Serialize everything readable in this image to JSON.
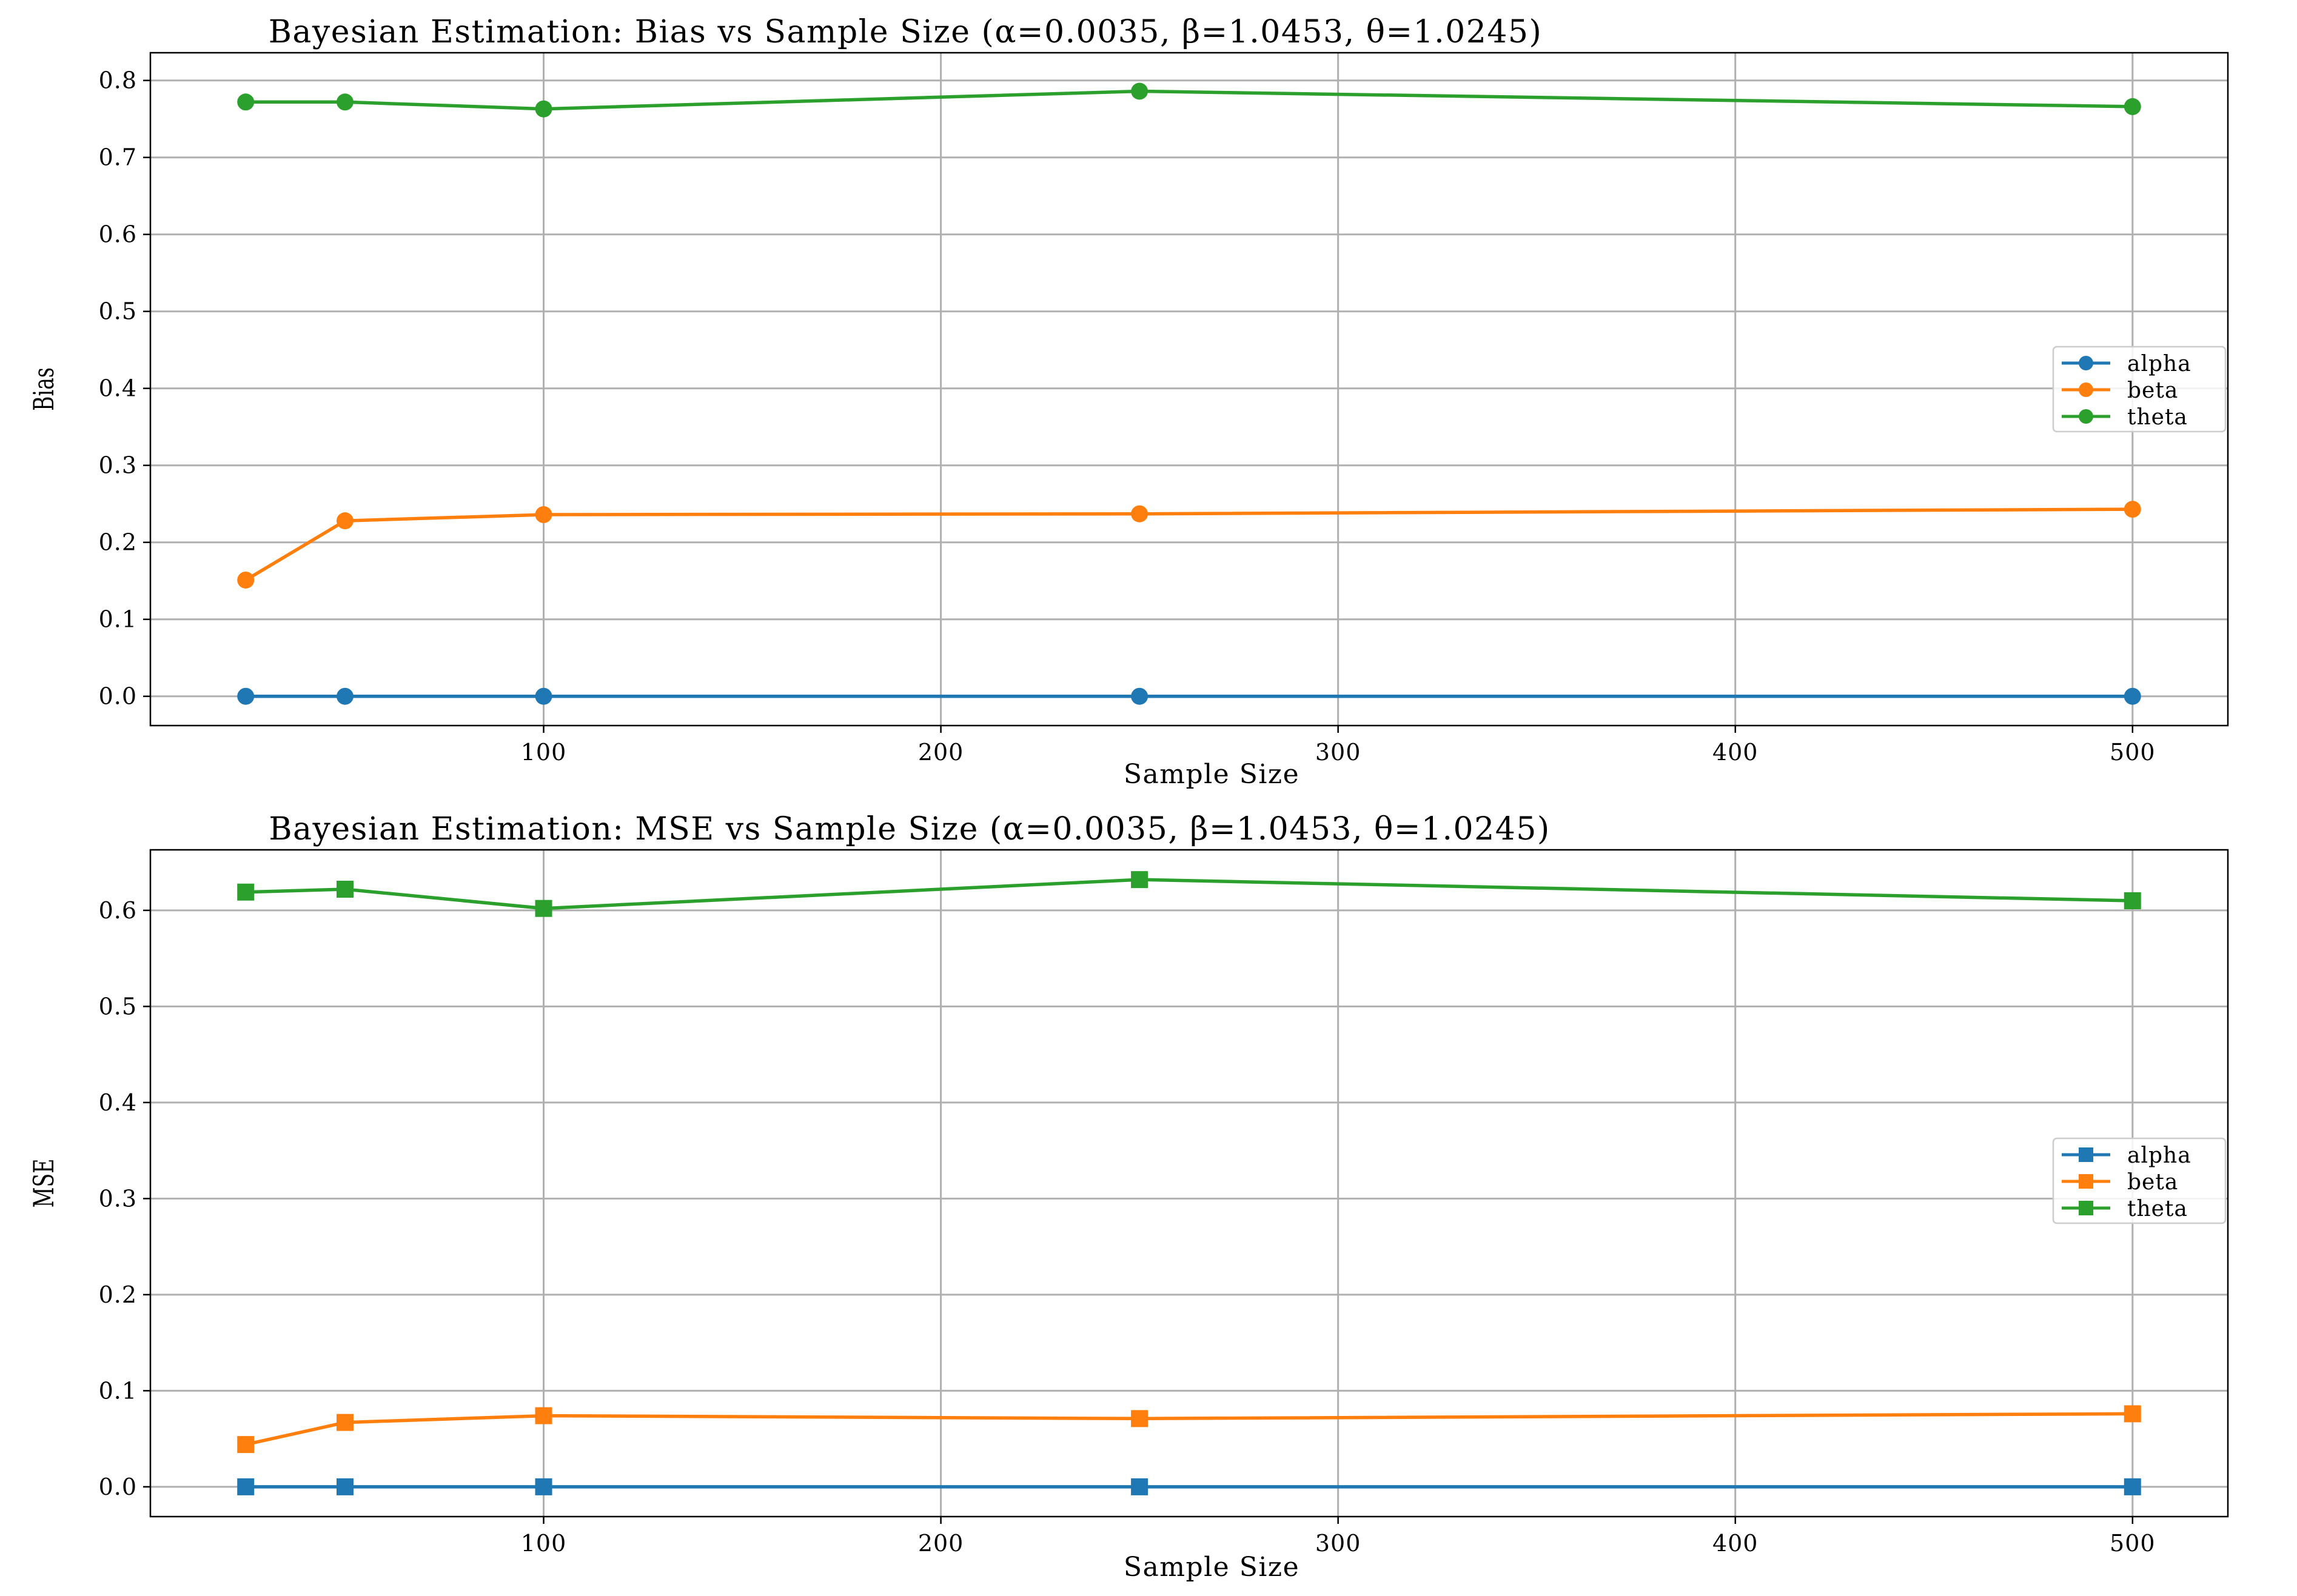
{
  "colors": {
    "alpha": "#1f77b4",
    "beta": "#ff7f0e",
    "theta": "#2ca02c",
    "grid": "#b0b0b0"
  },
  "chart_data": [
    {
      "type": "line",
      "title": "Bayesian Estimation: Bias vs Sample Size (α=0.0035, β=1.0453, θ=1.0245)",
      "xlabel": "Sample Size",
      "ylabel": "Bias",
      "marker": "circle",
      "x": [
        25,
        50,
        100,
        250,
        500
      ],
      "xticks": [
        100,
        200,
        300,
        400,
        500
      ],
      "yticks": [
        0.0,
        0.1,
        0.2,
        0.3,
        0.4,
        0.5,
        0.6,
        0.7,
        0.8
      ],
      "xlim": [
        1,
        524
      ],
      "ylim": [
        -0.038,
        0.836
      ],
      "grid": true,
      "legend_position": "center-right",
      "series": [
        {
          "name": "alpha",
          "values": [
            0.0,
            0.0,
            0.0,
            0.0,
            0.0
          ]
        },
        {
          "name": "beta",
          "values": [
            0.151,
            0.228,
            0.236,
            0.237,
            0.243
          ]
        },
        {
          "name": "theta",
          "values": [
            0.772,
            0.772,
            0.763,
            0.786,
            0.766
          ]
        }
      ]
    },
    {
      "type": "line",
      "title": "Bayesian Estimation: MSE vs Sample Size (α=0.0035, β=1.0453, θ=1.0245)",
      "xlabel": "Sample Size",
      "ylabel": "MSE",
      "marker": "square",
      "x": [
        25,
        50,
        100,
        250,
        500
      ],
      "xticks": [
        100,
        200,
        300,
        400,
        500
      ],
      "yticks": [
        0.0,
        0.1,
        0.2,
        0.3,
        0.4,
        0.5,
        0.6
      ],
      "xlim": [
        1,
        524
      ],
      "ylim": [
        -0.031,
        0.663
      ],
      "grid": true,
      "legend_position": "center-right",
      "series": [
        {
          "name": "alpha",
          "values": [
            0.0,
            0.0,
            0.0,
            0.0,
            0.0
          ]
        },
        {
          "name": "beta",
          "values": [
            0.044,
            0.067,
            0.074,
            0.071,
            0.076
          ]
        },
        {
          "name": "theta",
          "values": [
            0.619,
            0.622,
            0.602,
            0.632,
            0.61
          ]
        }
      ]
    }
  ]
}
